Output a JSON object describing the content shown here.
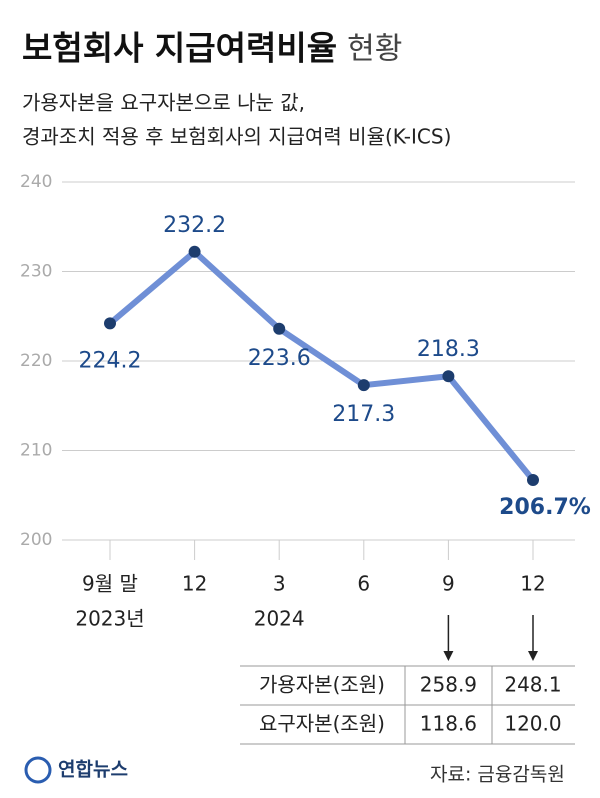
{
  "chart_data": {
    "type": "line",
    "title": "보험회사 지급여력비율",
    "title_suffix": "현황",
    "subtitle": [
      "가용자본을 요구자본으로 나눈 값,",
      "경과조치 적용 후 보험회사의 지급여력 비율(K-ICS)"
    ],
    "categories": [
      "9월 말",
      "12",
      "3",
      "6",
      "9",
      "12"
    ],
    "category_years": [
      "2023년",
      null,
      "2024",
      null,
      null,
      null
    ],
    "values": [
      224.2,
      232.2,
      223.6,
      217.3,
      218.3,
      206.7
    ],
    "value_labels": [
      "224.2",
      "232.2",
      "223.6",
      "217.3",
      "218.3",
      "206.7%"
    ],
    "color": "#6f8fd6",
    "marker_color": "#1d3d6e",
    "ylim": [
      200,
      240
    ],
    "yticks": [
      200,
      210,
      220,
      230,
      240
    ],
    "grid": true
  },
  "table": {
    "rows": [
      [
        "가용자본(조원)",
        "258.9",
        "248.1"
      ],
      [
        "요구자본(조원)",
        "118.6",
        "120.0"
      ]
    ]
  },
  "footer": {
    "logo": "연합뉴스",
    "source": "자료: 금융감독원"
  }
}
